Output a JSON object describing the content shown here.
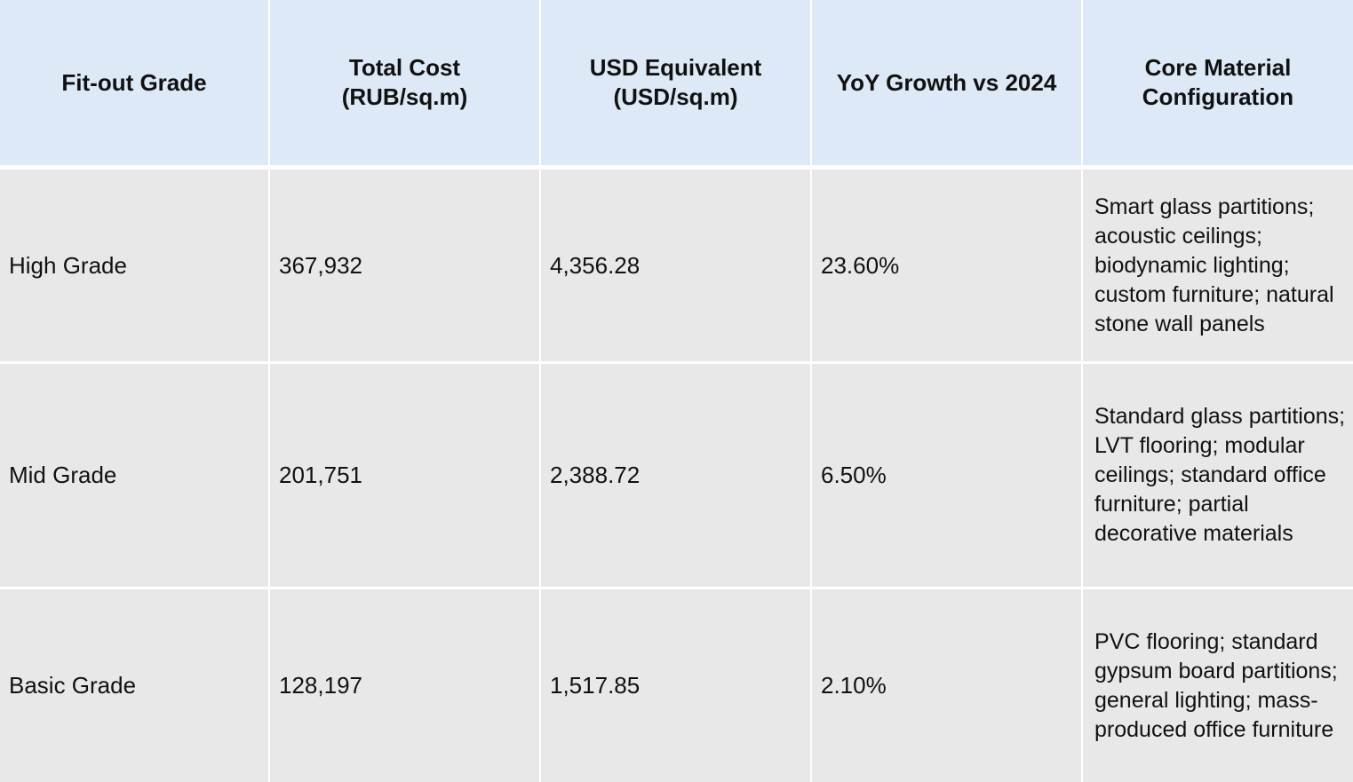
{
  "table": {
    "header": [
      [
        "Fit-out Grade"
      ],
      [
        "Total Cost",
        "(RUB/sq.m)"
      ],
      [
        "USD Equivalent",
        "(USD/sq.m)"
      ],
      [
        "YoY Growth vs 2024"
      ],
      [
        "Core Material",
        "Configuration"
      ]
    ],
    "rows": [
      [
        "High Grade",
        "367,932",
        "4,356.28",
        "23.60%",
        "Smart glass partitions; acoustic ceilings; biodynamic lighting; custom furniture; natural stone wall panels"
      ],
      [
        "Mid Grade",
        "201,751",
        "2,388.72",
        "6.50%",
        "Standard glass partitions; LVT flooring; modular ceilings; standard office furniture; partial decorative materials"
      ],
      [
        "Basic Grade",
        "128,197",
        "1,517.85",
        "2.10%",
        "PVC flooring; standard gypsum board partitions; general lighting; mass-produced office furniture"
      ]
    ]
  }
}
